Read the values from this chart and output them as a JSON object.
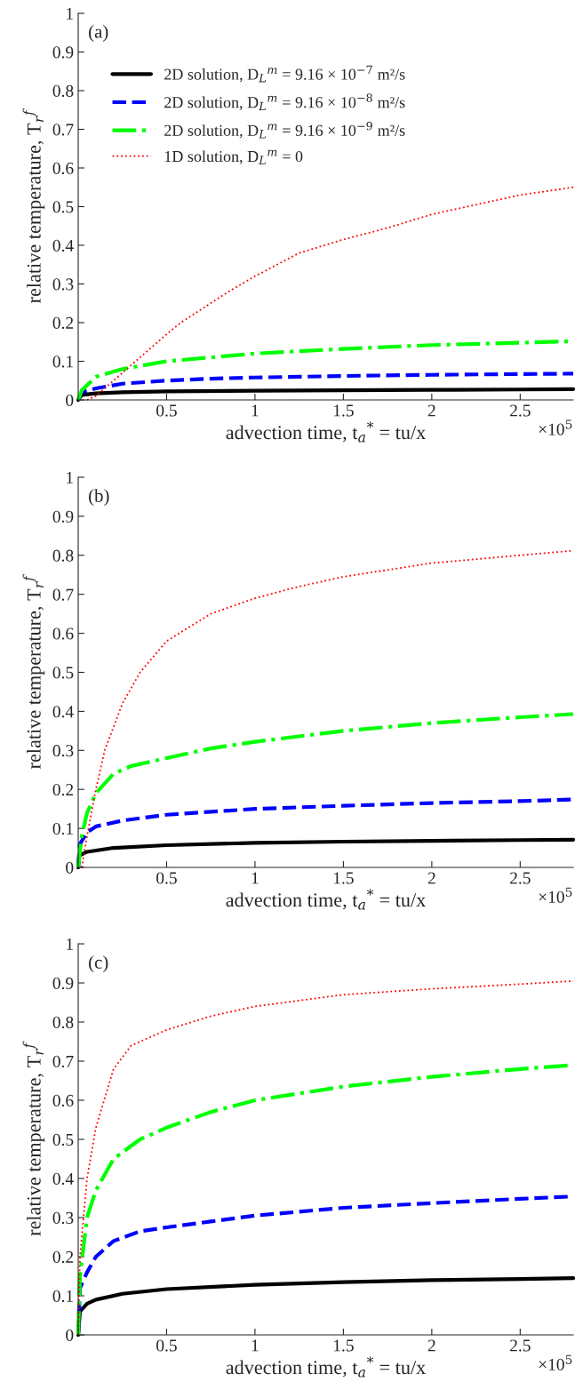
{
  "chart_data": [
    {
      "type": "line",
      "title": "(a)",
      "xlabel": "advection time, t$_{a}$$^{*}$ = tu/x",
      "ylabel": "relative temperature, T$_{r}$$^{f}$",
      "annotations": [
        "×10$^{5}$"
      ],
      "xlim": [
        0,
        2.8
      ],
      "xticks": [
        0.5,
        1,
        1.5,
        2,
        2.5
      ],
      "ylim": [
        0,
        1
      ],
      "yticks": [
        0,
        0.1,
        0.2,
        0.3,
        0.4,
        0.5,
        0.6,
        0.7,
        0.8,
        0.9,
        1
      ],
      "legend": "top left",
      "grid": false,
      "series": [
        {
          "name": "2D solution, D$_{L}$$^{m}$ = 9.16 × 10$^{−7}$ m²/s",
          "color": "#000000",
          "line_style": "solid",
          "x": [
            0,
            0.02,
            0.1,
            0.25,
            0.5,
            1,
            1.5,
            2,
            2.5,
            2.8
          ],
          "values": [
            0,
            0.013,
            0.017,
            0.02,
            0.022,
            0.024,
            0.025,
            0.026,
            0.027,
            0.028
          ]
        },
        {
          "name": "2D solution, D$_{L}$$^{m}$ = 9.16 × 10$^{−8}$ m²/s",
          "color": "#0000ff",
          "line_style": "dashed",
          "x": [
            0,
            0.02,
            0.1,
            0.25,
            0.5,
            0.75,
            1,
            1.5,
            2,
            2.5,
            2.8
          ],
          "values": [
            0,
            0.02,
            0.03,
            0.042,
            0.05,
            0.055,
            0.058,
            0.062,
            0.065,
            0.067,
            0.068
          ]
        },
        {
          "name": "2D solution, D$_{L}$$^{m}$ = 9.16 × 10$^{−9}$ m²/s",
          "color": "#00ff00",
          "line_style": "dashdot",
          "x": [
            0,
            0.02,
            0.1,
            0.25,
            0.5,
            0.75,
            1,
            1.5,
            2,
            2.5,
            2.8
          ],
          "values": [
            0,
            0.025,
            0.06,
            0.08,
            0.1,
            0.11,
            0.12,
            0.132,
            0.142,
            0.148,
            0.152
          ]
        },
        {
          "name": "1D solution, D$_{L}$$^{m}$ = 0",
          "color": "#ff0000",
          "line_style": "dotted",
          "x": [
            0.05,
            0.1,
            0.2,
            0.3,
            0.5,
            0.58,
            0.85,
            1,
            1.25,
            1.5,
            1.75,
            2,
            2.25,
            2.5,
            2.8
          ],
          "values": [
            0,
            0.01,
            0.05,
            0.09,
            0.17,
            0.2,
            0.28,
            0.32,
            0.38,
            0.415,
            0.445,
            0.48,
            0.505,
            0.53,
            0.55
          ]
        }
      ]
    },
    {
      "type": "line",
      "title": "(b)",
      "xlabel": "advection time, t$_{a}$$^{*}$ = tu/x",
      "ylabel": "relative temperature, T$_{r}$$^{f}$",
      "annotations": [
        "×10$^{5}$"
      ],
      "xlim": [
        0,
        2.8
      ],
      "xticks": [
        0.5,
        1,
        1.5,
        2,
        2.5
      ],
      "ylim": [
        0,
        1
      ],
      "yticks": [
        0,
        0.1,
        0.2,
        0.3,
        0.4,
        0.5,
        0.6,
        0.7,
        0.8,
        0.9,
        1
      ],
      "grid": false,
      "series": [
        {
          "color": "#000000",
          "line_style": "solid",
          "x": [
            0,
            0.005,
            0.05,
            0.2,
            0.5,
            1,
            1.5,
            2,
            2.5,
            2.8
          ],
          "values": [
            0,
            0.03,
            0.04,
            0.05,
            0.057,
            0.063,
            0.066,
            0.068,
            0.07,
            0.071
          ]
        },
        {
          "color": "#0000ff",
          "line_style": "dashed",
          "x": [
            0,
            0.01,
            0.05,
            0.1,
            0.25,
            0.5,
            1,
            1.5,
            2,
            2.5,
            2.8
          ],
          "values": [
            0,
            0.06,
            0.09,
            0.105,
            0.12,
            0.135,
            0.15,
            0.158,
            0.165,
            0.17,
            0.174
          ]
        },
        {
          "color": "#00ff00",
          "line_style": "dashdot",
          "x": [
            0,
            0.02,
            0.05,
            0.1,
            0.2,
            0.3,
            0.5,
            0.75,
            1,
            1.5,
            2,
            2.5,
            2.8
          ],
          "values": [
            0,
            0.08,
            0.14,
            0.19,
            0.24,
            0.26,
            0.28,
            0.305,
            0.322,
            0.35,
            0.37,
            0.385,
            0.393
          ]
        },
        {
          "color": "#ff0000",
          "line_style": "dotted",
          "x": [
            0.02,
            0.05,
            0.1,
            0.15,
            0.25,
            0.35,
            0.5,
            0.75,
            1,
            1.25,
            1.5,
            2,
            2.5,
            2.8
          ],
          "values": [
            0,
            0.08,
            0.2,
            0.3,
            0.42,
            0.5,
            0.58,
            0.65,
            0.69,
            0.72,
            0.745,
            0.78,
            0.8,
            0.812
          ]
        }
      ]
    },
    {
      "type": "line",
      "title": "(c)",
      "xlabel": "advection time, t$_{a}$$^{*}$ = tu/x",
      "ylabel": "relative temperature, T$_{r}$$^{f}$",
      "annotations": [
        "×10$^{5}$"
      ],
      "xlim": [
        0,
        2.8
      ],
      "xticks": [
        0.5,
        1,
        1.5,
        2,
        2.5
      ],
      "ylim": [
        0,
        1
      ],
      "yticks": [
        0,
        0.1,
        0.2,
        0.3,
        0.4,
        0.5,
        0.6,
        0.7,
        0.8,
        0.9,
        1
      ],
      "grid": false,
      "series": [
        {
          "color": "#000000",
          "line_style": "solid",
          "x": [
            0,
            0.01,
            0.05,
            0.1,
            0.25,
            0.5,
            1,
            1.5,
            2,
            2.5,
            2.8
          ],
          "values": [
            0,
            0.06,
            0.08,
            0.09,
            0.105,
            0.117,
            0.128,
            0.135,
            0.14,
            0.143,
            0.145
          ]
        },
        {
          "color": "#0000ff",
          "line_style": "dashed",
          "x": [
            0,
            0.01,
            0.05,
            0.1,
            0.2,
            0.35,
            0.5,
            0.75,
            1,
            1.5,
            2,
            2.5,
            2.8
          ],
          "values": [
            0,
            0.12,
            0.16,
            0.2,
            0.24,
            0.265,
            0.275,
            0.29,
            0.305,
            0.325,
            0.337,
            0.348,
            0.354
          ]
        },
        {
          "color": "#00ff00",
          "line_style": "dashdot",
          "x": [
            0,
            0.01,
            0.05,
            0.1,
            0.2,
            0.35,
            0.5,
            0.75,
            1,
            1.5,
            2,
            2.5,
            2.8
          ],
          "values": [
            0,
            0.15,
            0.3,
            0.37,
            0.45,
            0.5,
            0.53,
            0.57,
            0.6,
            0.635,
            0.66,
            0.68,
            0.69
          ]
        },
        {
          "color": "#ff0000",
          "line_style": "dotted",
          "x": [
            0,
            0.01,
            0.05,
            0.1,
            0.2,
            0.3,
            0.5,
            0.75,
            1,
            1.5,
            2,
            2.5,
            2.8
          ],
          "values": [
            0,
            0.2,
            0.4,
            0.53,
            0.68,
            0.74,
            0.78,
            0.815,
            0.84,
            0.87,
            0.885,
            0.897,
            0.905
          ]
        }
      ]
    }
  ]
}
